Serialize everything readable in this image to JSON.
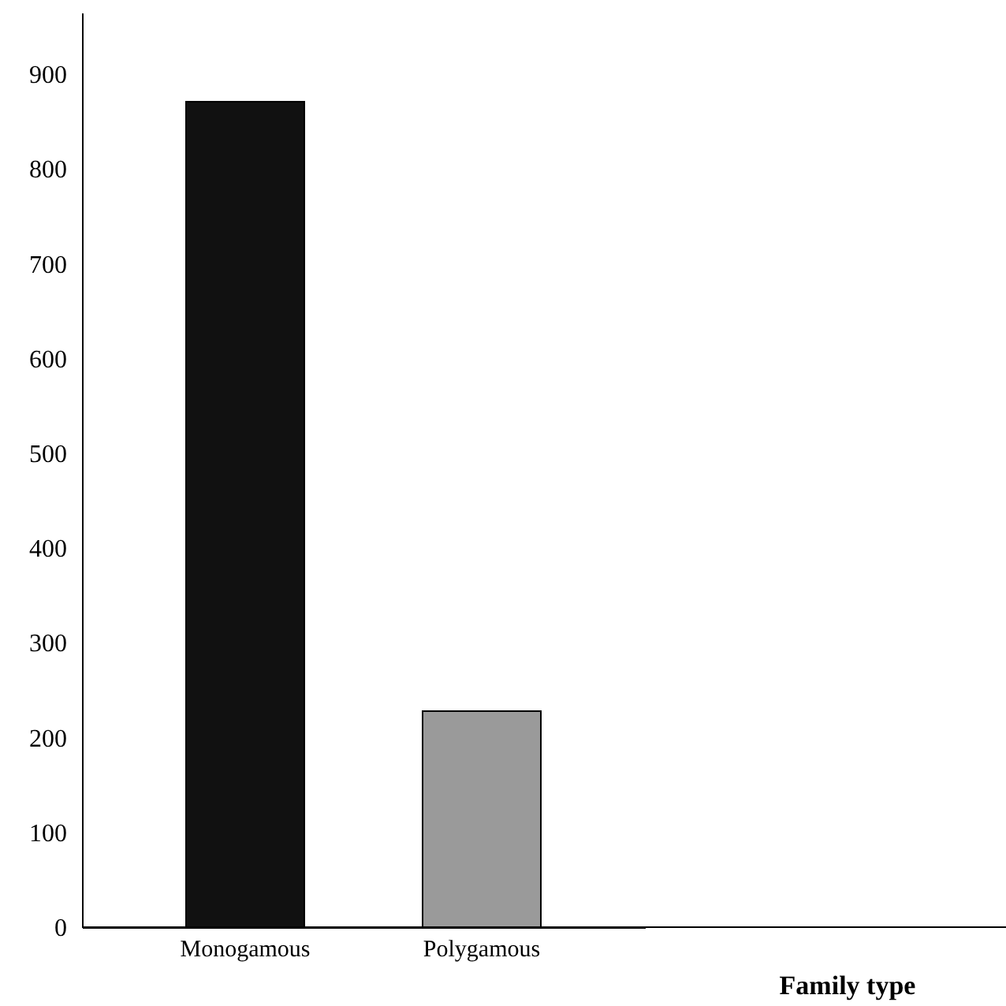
{
  "chart_data": {
    "type": "bar",
    "xlabel": "Family type",
    "categories": [
      "Monogamous",
      "Polygamous"
    ],
    "values": [
      871,
      228
    ],
    "colors": [
      "#111111",
      "#9a9a9a"
    ],
    "ylim": [
      0,
      965
    ],
    "yticks": [
      0,
      100,
      200,
      300,
      400,
      500,
      600,
      700,
      800,
      900
    ],
    "grid": false
  }
}
